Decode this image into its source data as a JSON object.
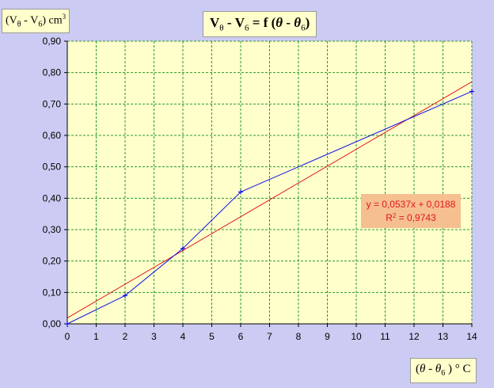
{
  "chart_data": {
    "type": "scatter",
    "title": "Vθ - V6 = f (θ - θ6)",
    "title_parts": {
      "v1": "V",
      "s1": "θ",
      "minus": " - V",
      "s2": "6",
      "eq": " =  f (",
      "th": "θ",
      "dash": " - ",
      "th2": "θ",
      "s3": "6",
      "close": ")"
    },
    "ylabel": "(Vθ - V6) cm3",
    "ylabel_parts": {
      "open": "(V",
      "s1": "θ",
      "mid": " - V",
      "s2": "6",
      "close": ") cm",
      "sup": "3"
    },
    "xlabel": "(θ - θ6) ° C",
    "xlabel_parts": {
      "open": "(",
      "th": "θ",
      "dash": "  -  ",
      "th2": "θ",
      "s": "6",
      "close": " ) ° C"
    },
    "xlim": [
      0,
      14
    ],
    "ylim": [
      0,
      0.9
    ],
    "x_ticks": [
      "0",
      "1",
      "2",
      "3",
      "4",
      "5",
      "6",
      "7",
      "8",
      "9",
      "10",
      "11",
      "12",
      "13",
      "14"
    ],
    "y_ticks": [
      "0,00",
      "0,10",
      "0,20",
      "0,30",
      "0,40",
      "0,50",
      "0,60",
      "0,70",
      "0,80",
      "0,90"
    ],
    "grid": true,
    "series": [
      {
        "x": [
          0,
          2,
          4,
          6,
          14
        ],
        "y": [
          0.0,
          0.09,
          0.24,
          0.42,
          0.74
        ],
        "color": "#1010e8"
      }
    ],
    "trendline": {
      "slope": 0.0537,
      "intercept": 0.0188,
      "color": "#e0181b"
    },
    "annotation": {
      "equation": "y = 0,0537x + 0,0188",
      "r2_prefix": "R",
      "r2_sup": "2",
      "r2_value": " = 0,9743"
    },
    "colors": {
      "background": "#cccbf3",
      "plot_bg": "#ffffcc",
      "grid": "#2a9a2a",
      "annotation_bg": "#f6bf8f"
    }
  }
}
